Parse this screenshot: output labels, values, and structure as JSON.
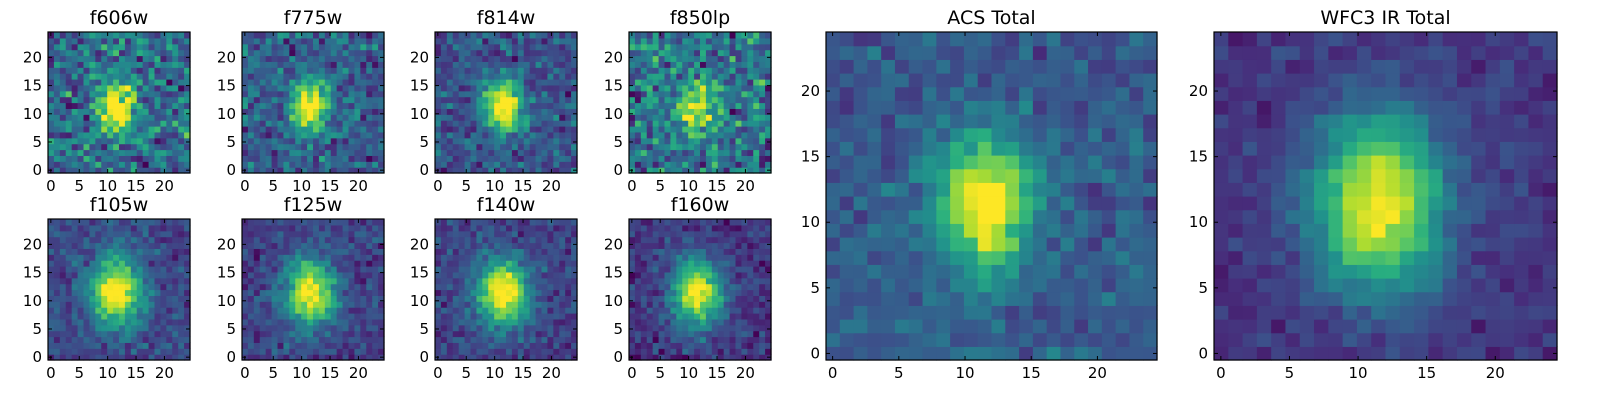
{
  "chart_data": [
    {
      "type": "heatmap",
      "title": "f606w",
      "xticks": [
        0,
        5,
        10,
        15,
        20
      ],
      "yticks": [
        0,
        5,
        10,
        15,
        20
      ],
      "xlim": [
        0,
        24
      ],
      "ylim": [
        0,
        24
      ],
      "grid_size": 24,
      "center": [
        11,
        11
      ],
      "sigma_x": 2.0,
      "sigma_y": 3.0,
      "peak": 0.78,
      "background": 0.35,
      "noise": 0.22,
      "seed": 11
    },
    {
      "type": "heatmap",
      "title": "f775w",
      "xticks": [
        0,
        5,
        10,
        15,
        20
      ],
      "yticks": [
        0,
        5,
        10,
        15,
        20
      ],
      "xlim": [
        0,
        24
      ],
      "ylim": [
        0,
        24
      ],
      "grid_size": 24,
      "center": [
        11,
        11
      ],
      "sigma_x": 2.0,
      "sigma_y": 3.0,
      "peak": 0.8,
      "background": 0.3,
      "noise": 0.16,
      "seed": 23
    },
    {
      "type": "heatmap",
      "title": "f814w",
      "xticks": [
        0,
        5,
        10,
        15,
        20
      ],
      "yticks": [
        0,
        5,
        10,
        15,
        20
      ],
      "xlim": [
        0,
        24
      ],
      "ylim": [
        0,
        24
      ],
      "grid_size": 24,
      "center": [
        11,
        11
      ],
      "sigma_x": 2.2,
      "sigma_y": 3.2,
      "peak": 0.82,
      "background": 0.26,
      "noise": 0.14,
      "seed": 37
    },
    {
      "type": "heatmap",
      "title": "f850lp",
      "xticks": [
        0,
        5,
        10,
        15,
        20
      ],
      "yticks": [
        0,
        5,
        10,
        15,
        20
      ],
      "xlim": [
        0,
        24
      ],
      "ylim": [
        0,
        24
      ],
      "grid_size": 24,
      "center": [
        11,
        11
      ],
      "sigma_x": 2.0,
      "sigma_y": 3.0,
      "peak": 0.65,
      "background": 0.38,
      "noise": 0.22,
      "seed": 41
    },
    {
      "type": "heatmap",
      "title": "f105w",
      "xticks": [
        0,
        5,
        10,
        15,
        20
      ],
      "yticks": [
        0,
        5,
        10,
        15,
        20
      ],
      "xlim": [
        0,
        24
      ],
      "ylim": [
        0,
        24
      ],
      "grid_size": 24,
      "center": [
        11,
        11
      ],
      "sigma_x": 3.0,
      "sigma_y": 4.0,
      "peak": 0.85,
      "background": 0.22,
      "noise": 0.1,
      "seed": 53
    },
    {
      "type": "heatmap",
      "title": "f125w",
      "xticks": [
        0,
        5,
        10,
        15,
        20
      ],
      "yticks": [
        0,
        5,
        10,
        15,
        20
      ],
      "xlim": [
        0,
        24
      ],
      "ylim": [
        0,
        24
      ],
      "grid_size": 24,
      "center": [
        11,
        11
      ],
      "sigma_x": 3.0,
      "sigma_y": 4.0,
      "peak": 0.82,
      "background": 0.2,
      "noise": 0.1,
      "seed": 67
    },
    {
      "type": "heatmap",
      "title": "f140w",
      "xticks": [
        0,
        5,
        10,
        15,
        20
      ],
      "yticks": [
        0,
        5,
        10,
        15,
        20
      ],
      "xlim": [
        0,
        24
      ],
      "ylim": [
        0,
        24
      ],
      "grid_size": 24,
      "center": [
        11,
        11
      ],
      "sigma_x": 3.0,
      "sigma_y": 4.0,
      "peak": 0.85,
      "background": 0.2,
      "noise": 0.1,
      "seed": 79
    },
    {
      "type": "heatmap",
      "title": "f160w",
      "xticks": [
        0,
        5,
        10,
        15,
        20
      ],
      "yticks": [
        0,
        5,
        10,
        15,
        20
      ],
      "xlim": [
        0,
        24
      ],
      "ylim": [
        0,
        24
      ],
      "grid_size": 24,
      "center": [
        11,
        11
      ],
      "sigma_x": 3.0,
      "sigma_y": 4.0,
      "peak": 0.85,
      "background": 0.15,
      "noise": 0.1,
      "seed": 97
    },
    {
      "type": "heatmap",
      "title": "ACS Total",
      "xticks": [
        0,
        5,
        10,
        15,
        20
      ],
      "yticks": [
        0,
        5,
        10,
        15,
        20
      ],
      "xlim": [
        0,
        24
      ],
      "ylim": [
        0,
        24
      ],
      "grid_size": 24,
      "center": [
        11,
        11
      ],
      "sigma_x": 2.4,
      "sigma_y": 3.5,
      "peak": 0.78,
      "background": 0.28,
      "noise": 0.09,
      "seed": 103
    },
    {
      "type": "heatmap",
      "title": "WFC3 IR Total",
      "xticks": [
        0,
        5,
        10,
        15,
        20
      ],
      "yticks": [
        0,
        5,
        10,
        15,
        20
      ],
      "xlim": [
        0,
        24
      ],
      "ylim": [
        0,
        24
      ],
      "grid_size": 24,
      "center": [
        11,
        11
      ],
      "sigma_x": 3.3,
      "sigma_y": 4.5,
      "peak": 0.85,
      "background": 0.15,
      "noise": 0.06,
      "seed": 131
    }
  ],
  "colormap": [
    "#440154",
    "#472d7b",
    "#3b528b",
    "#2c728e",
    "#21918c",
    "#28ae80",
    "#5ec962",
    "#addc30",
    "#fde725"
  ]
}
